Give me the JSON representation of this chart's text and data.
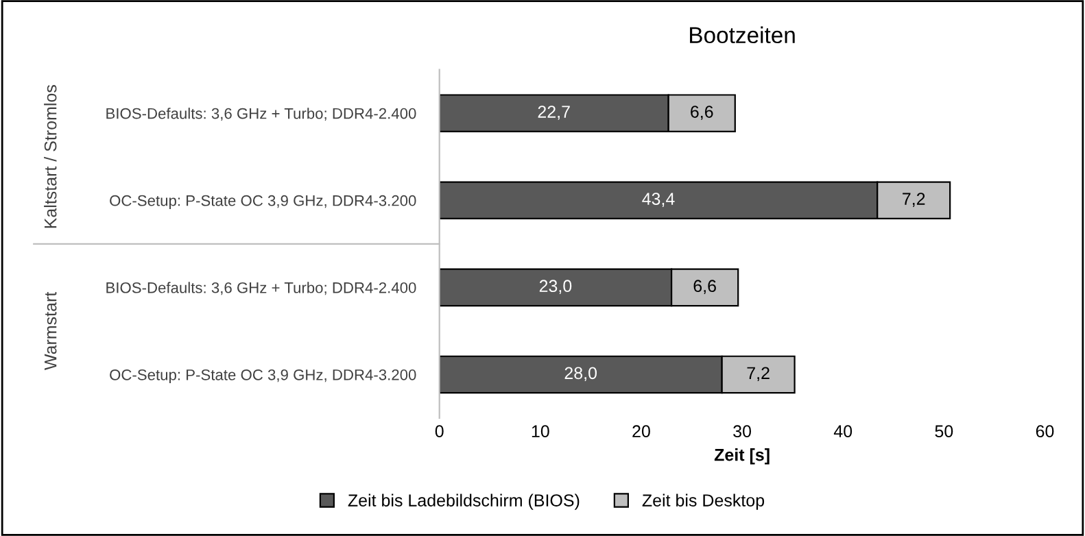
{
  "chart_data": {
    "type": "bar",
    "orientation": "horizontal",
    "stacked": true,
    "title": "Bootzeiten",
    "xlabel": "Zeit [s]",
    "categories": [
      "BIOS-Defaults: 3,6 GHz + Turbo; DDR4-2.400",
      "OC-Setup: P-State OC 3,9 GHz, DDR4-3.200",
      "BIOS-Defaults: 3,6 GHz + Turbo; DDR4-2.400",
      "OC-Setup: P-State OC 3,9 GHz, DDR4-3.200"
    ],
    "series": [
      {
        "name": "Zeit bis Ladebildschirm (BIOS)",
        "color": "#595959",
        "values": [
          22.7,
          43.4,
          23.0,
          28.0
        ],
        "value_labels": [
          "22,7",
          "43,4",
          "23,0",
          "28,0"
        ]
      },
      {
        "name": "Zeit bis Desktop",
        "color": "#bfbfbf",
        "values": [
          6.6,
          7.2,
          6.6,
          7.2
        ],
        "value_labels": [
          "6,6",
          "7,2",
          "6,6",
          "7,2"
        ]
      }
    ],
    "annotations": [
      "Kaltstart / Stromlos",
      "Warmstart"
    ],
    "xlim": [
      0,
      60
    ],
    "xticks": [
      0,
      10,
      20,
      30,
      40,
      50,
      60
    ],
    "grid": false,
    "legend": "bottom"
  }
}
